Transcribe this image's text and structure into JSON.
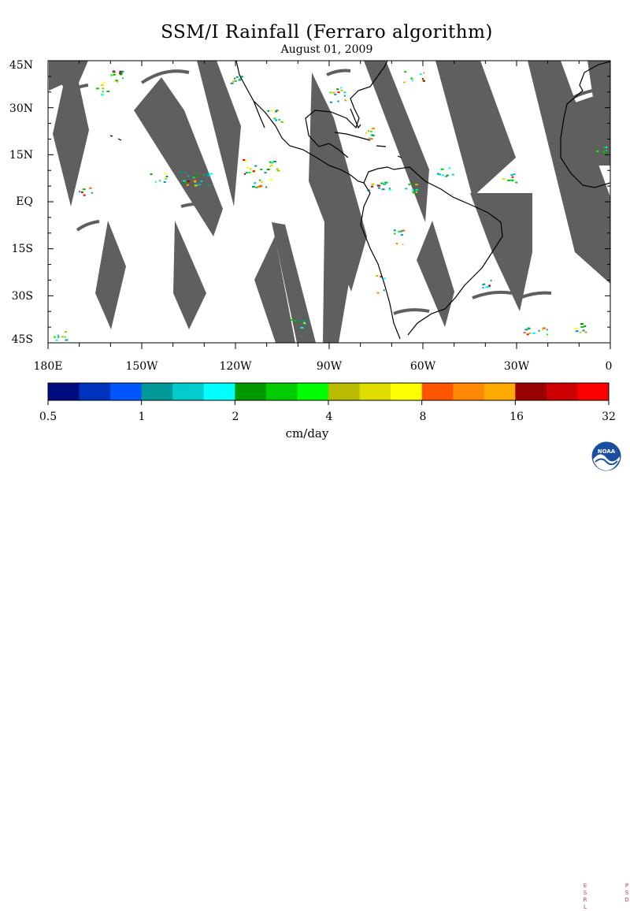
{
  "title": "SSM/I Rainfall (Ferraro algorithm)",
  "date": "August 01, 2009",
  "lat_labels": [
    "45N",
    "30N",
    "15N",
    "EQ",
    "15S",
    "30S",
    "45S"
  ],
  "lon_labels": [
    "180E",
    "150W",
    "120W",
    "90W",
    "60W",
    "30W",
    "0"
  ],
  "colorbar": {
    "labels": [
      "0.5",
      "1",
      "2",
      "4",
      "8",
      "16",
      "32"
    ],
    "units": "cm/day",
    "colors": [
      "#000d80",
      "#0033bb",
      "#0055ff",
      "#009999",
      "#00cccc",
      "#00ffff",
      "#009900",
      "#00cc00",
      "#00ff00",
      "#bbbb00",
      "#dddd00",
      "#ffff00",
      "#ff5500",
      "#ff8800",
      "#ffaa00",
      "#990000",
      "#cc0000",
      "#ff0000"
    ]
  },
  "map": {
    "no_data_color": "#5f5f5f",
    "coast_color": "#000000"
  },
  "logo": {
    "name": "NOAA",
    "left_letters": [
      "E",
      "S",
      "R",
      "L"
    ],
    "right_letters": [
      "P",
      "S",
      "D"
    ]
  }
}
